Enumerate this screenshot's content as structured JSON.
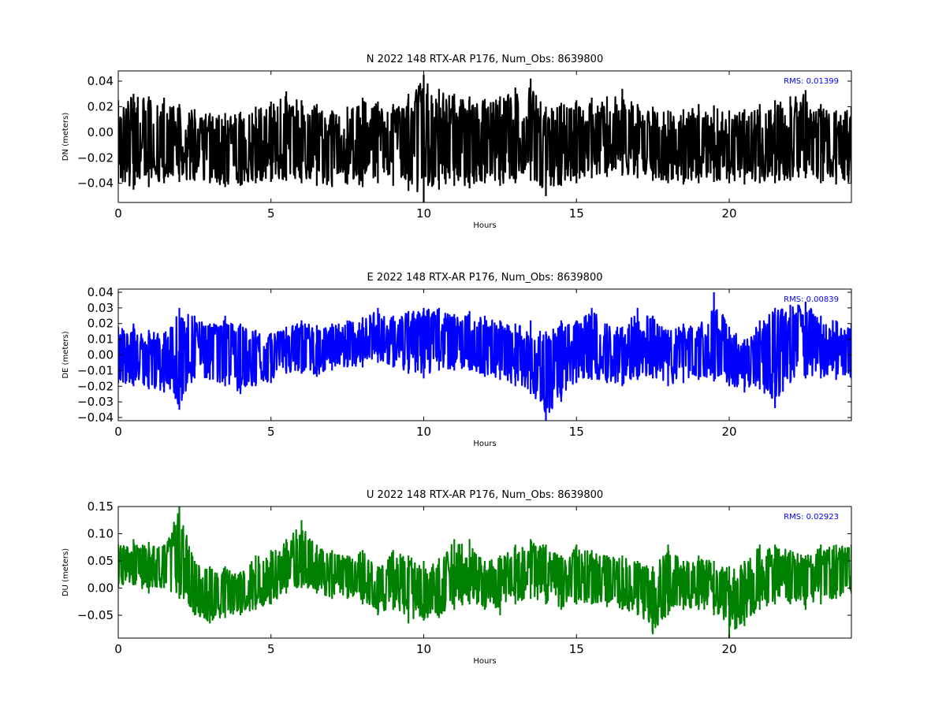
{
  "chart_data": [
    {
      "type": "line",
      "title": "N 2022 148 RTX-AR  P176, Num_Obs: 8639800",
      "xlabel": "Hours",
      "ylabel": "DN (meters)",
      "xlim": [
        0,
        24
      ],
      "ylim": [
        -0.055,
        0.048
      ],
      "xticks": [
        0,
        5,
        10,
        15,
        20
      ],
      "yticks": [
        -0.04,
        -0.02,
        0.0,
        0.02,
        0.04
      ],
      "ytick_labels": [
        "−0.04",
        "−0.02",
        "0.00",
        "0.02",
        "0.04"
      ],
      "annotation": "RMS:  0.01399",
      "color": "#000000",
      "grid": false,
      "series": [
        {
          "x": [
            0,
            0.5,
            1,
            1.5,
            2,
            2.5,
            3,
            3.5,
            4,
            4.5,
            5,
            5.5,
            6,
            6.5,
            7,
            7.5,
            8,
            8.5,
            9,
            9.5,
            10,
            10.5,
            11,
            11.5,
            12,
            12.5,
            13,
            13.5,
            14,
            14.5,
            15,
            15.5,
            16,
            16.5,
            17,
            17.5,
            18,
            18.5,
            19,
            19.5,
            20,
            20.5,
            21,
            21.5,
            22,
            22.5,
            23,
            23.5,
            24
          ],
          "center": [
            -0.01,
            -0.008,
            -0.009,
            -0.011,
            -0.012,
            -0.014,
            -0.017,
            -0.02,
            -0.019,
            -0.016,
            -0.012,
            -0.01,
            -0.011,
            -0.013,
            -0.014,
            -0.012,
            -0.01,
            -0.008,
            -0.009,
            -0.007,
            -0.005,
            -0.006,
            -0.008,
            -0.01,
            -0.01,
            -0.008,
            -0.004,
            0.0,
            -0.015,
            -0.01,
            -0.006,
            -0.004,
            -0.003,
            -0.002,
            -0.006,
            -0.008,
            -0.01,
            -0.011,
            -0.012,
            -0.011,
            -0.013,
            -0.014,
            -0.012,
            -0.01,
            -0.008,
            -0.008,
            -0.012,
            -0.014,
            -0.013
          ],
          "min": [
            -0.04,
            -0.045,
            -0.043,
            -0.04,
            -0.039,
            -0.038,
            -0.04,
            -0.043,
            -0.042,
            -0.04,
            -0.039,
            -0.038,
            -0.04,
            -0.042,
            -0.043,
            -0.041,
            -0.043,
            -0.04,
            -0.042,
            -0.046,
            -0.055,
            -0.045,
            -0.042,
            -0.044,
            -0.04,
            -0.042,
            -0.04,
            -0.038,
            -0.05,
            -0.042,
            -0.04,
            -0.036,
            -0.035,
            -0.034,
            -0.036,
            -0.038,
            -0.04,
            -0.041,
            -0.04,
            -0.039,
            -0.04,
            -0.041,
            -0.04,
            -0.04,
            -0.038,
            -0.036,
            -0.04,
            -0.041,
            -0.04
          ],
          "max": [
            0.025,
            0.03,
            0.028,
            0.027,
            0.022,
            0.018,
            0.015,
            0.015,
            0.016,
            0.02,
            0.024,
            0.032,
            0.025,
            0.022,
            0.017,
            0.02,
            0.027,
            0.024,
            0.022,
            0.03,
            0.045,
            0.034,
            0.03,
            0.028,
            0.026,
            0.028,
            0.035,
            0.042,
            0.02,
            0.023,
            0.025,
            0.027,
            0.028,
            0.034,
            0.022,
            0.02,
            0.017,
            0.018,
            0.022,
            0.021,
            0.017,
            0.018,
            0.022,
            0.025,
            0.028,
            0.033,
            0.022,
            0.017,
            0.02
          ]
        }
      ]
    },
    {
      "type": "line",
      "title": "E 2022 148 RTX-AR  P176, Num_Obs: 8639800",
      "xlabel": "Hours",
      "ylabel": "DE (meters)",
      "xlim": [
        0,
        24
      ],
      "ylim": [
        -0.042,
        0.042
      ],
      "xticks": [
        0,
        5,
        10,
        15,
        20
      ],
      "yticks": [
        -0.04,
        -0.03,
        -0.02,
        -0.01,
        0.0,
        0.01,
        0.02,
        0.03,
        0.04
      ],
      "ytick_labels": [
        "−0.04",
        "−0.03",
        "−0.02",
        "−0.01",
        "0.00",
        "0.01",
        "0.02",
        "0.03",
        "0.04"
      ],
      "annotation": "RMS:  0.00839",
      "color": "#0000ff",
      "grid": false,
      "series": [
        {
          "x": [
            0,
            0.5,
            1,
            1.5,
            2,
            2.5,
            3,
            3.5,
            4,
            4.5,
            5,
            5.5,
            6,
            6.5,
            7,
            7.5,
            8,
            8.5,
            9,
            9.5,
            10,
            10.5,
            11,
            11.5,
            12,
            12.5,
            13,
            13.5,
            14,
            14.5,
            15,
            15.5,
            16,
            16.5,
            17,
            17.5,
            18,
            18.5,
            19,
            19.5,
            20,
            20.5,
            21,
            21.5,
            22,
            22.5,
            23,
            23.5,
            24
          ],
          "center": [
            0.0,
            -0.002,
            -0.002,
            -0.004,
            -0.002,
            0.004,
            0.002,
            -0.002,
            -0.004,
            -0.002,
            0.0,
            0.004,
            0.003,
            0.002,
            0.006,
            0.007,
            0.008,
            0.01,
            0.008,
            0.01,
            0.012,
            0.01,
            0.009,
            0.01,
            0.006,
            0.003,
            0.001,
            -0.002,
            -0.008,
            -0.004,
            0.002,
            0.004,
            0.002,
            0.001,
            0.004,
            0.005,
            0.0,
            0.002,
            0.003,
            0.004,
            0.002,
            -0.006,
            -0.002,
            0.008,
            0.01,
            0.008,
            0.006,
            0.005,
            0.004
          ],
          "min": [
            -0.018,
            -0.02,
            -0.022,
            -0.024,
            -0.035,
            -0.015,
            -0.016,
            -0.02,
            -0.025,
            -0.02,
            -0.018,
            -0.012,
            -0.012,
            -0.014,
            -0.01,
            -0.008,
            -0.008,
            -0.005,
            -0.008,
            -0.012,
            -0.015,
            -0.01,
            -0.01,
            -0.01,
            -0.014,
            -0.016,
            -0.02,
            -0.025,
            -0.042,
            -0.03,
            -0.018,
            -0.016,
            -0.018,
            -0.02,
            -0.016,
            -0.015,
            -0.02,
            -0.018,
            -0.016,
            -0.017,
            -0.02,
            -0.024,
            -0.022,
            -0.034,
            -0.018,
            -0.015,
            -0.015,
            -0.016,
            -0.015
          ],
          "max": [
            0.018,
            0.02,
            0.016,
            0.014,
            0.03,
            0.025,
            0.02,
            0.025,
            0.02,
            0.016,
            0.014,
            0.018,
            0.022,
            0.019,
            0.02,
            0.022,
            0.024,
            0.03,
            0.025,
            0.028,
            0.03,
            0.03,
            0.026,
            0.028,
            0.025,
            0.022,
            0.02,
            0.022,
            0.015,
            0.022,
            0.022,
            0.03,
            0.02,
            0.018,
            0.03,
            0.025,
            0.016,
            0.02,
            0.018,
            0.04,
            0.018,
            0.01,
            0.022,
            0.03,
            0.032,
            0.034,
            0.025,
            0.022,
            0.02
          ]
        }
      ]
    },
    {
      "type": "line",
      "title": "U 2022 148 RTX-AR  P176, Num_Obs: 8639800",
      "xlabel": "Hours",
      "ylabel": "DU (meters)",
      "xlim": [
        0,
        24
      ],
      "ylim": [
        -0.092,
        0.15
      ],
      "xticks": [
        0,
        5,
        10,
        15,
        20
      ],
      "yticks": [
        -0.05,
        0.0,
        0.05,
        0.1,
        0.15
      ],
      "ytick_labels": [
        "−0.05",
        "0.00",
        "0.05",
        "0.10",
        "0.15"
      ],
      "annotation": "RMS:  0.02923",
      "color": "#008000",
      "grid": false,
      "series": [
        {
          "x": [
            0,
            0.5,
            1,
            1.5,
            2,
            2.5,
            3,
            3.5,
            4,
            4.5,
            5,
            5.5,
            6,
            6.5,
            7,
            7.5,
            8,
            8.5,
            9,
            9.5,
            10,
            10.5,
            11,
            11.5,
            12,
            12.5,
            13,
            13.5,
            14,
            14.5,
            15,
            15.5,
            16,
            16.5,
            17,
            17.5,
            18,
            18.5,
            19,
            19.5,
            20,
            20.5,
            21,
            21.5,
            22,
            22.5,
            23,
            23.5,
            24
          ],
          "center": [
            0.035,
            0.045,
            0.04,
            0.035,
            0.045,
            0.0,
            -0.01,
            -0.005,
            -0.015,
            0.0,
            0.02,
            0.04,
            0.045,
            0.04,
            0.03,
            0.035,
            0.03,
            0.0,
            0.015,
            0.0,
            -0.01,
            0.0,
            0.02,
            0.03,
            0.0,
            0.01,
            0.03,
            0.035,
            0.025,
            0.02,
            0.03,
            0.02,
            0.015,
            0.01,
            0.0,
            -0.02,
            0.015,
            0.01,
            0.01,
            0.0,
            -0.02,
            -0.01,
            0.02,
            0.03,
            0.025,
            0.02,
            0.035,
            0.04,
            0.045
          ],
          "min": [
            0.0,
            0.005,
            -0.01,
            0.0,
            -0.02,
            -0.05,
            -0.065,
            -0.055,
            -0.05,
            -0.04,
            -0.03,
            -0.01,
            0.0,
            -0.01,
            -0.02,
            -0.02,
            -0.03,
            -0.05,
            -0.04,
            -0.065,
            -0.06,
            -0.055,
            -0.04,
            -0.03,
            -0.04,
            -0.05,
            -0.03,
            -0.02,
            -0.03,
            -0.04,
            -0.03,
            -0.03,
            -0.035,
            -0.04,
            -0.05,
            -0.085,
            -0.05,
            -0.04,
            -0.04,
            -0.05,
            -0.092,
            -0.07,
            -0.04,
            -0.03,
            -0.03,
            -0.04,
            -0.03,
            -0.02,
            -0.01
          ],
          "max": [
            0.08,
            0.09,
            0.085,
            0.08,
            0.15,
            0.05,
            0.04,
            0.04,
            0.03,
            0.06,
            0.07,
            0.09,
            0.125,
            0.08,
            0.07,
            0.06,
            0.07,
            0.04,
            0.07,
            0.06,
            0.05,
            0.055,
            0.09,
            0.09,
            0.05,
            0.06,
            0.08,
            0.09,
            0.08,
            0.06,
            0.08,
            0.07,
            0.06,
            0.06,
            0.05,
            0.04,
            0.08,
            0.05,
            0.06,
            0.05,
            0.04,
            0.05,
            0.08,
            0.08,
            0.07,
            0.06,
            0.08,
            0.08,
            0.08
          ]
        }
      ]
    }
  ]
}
